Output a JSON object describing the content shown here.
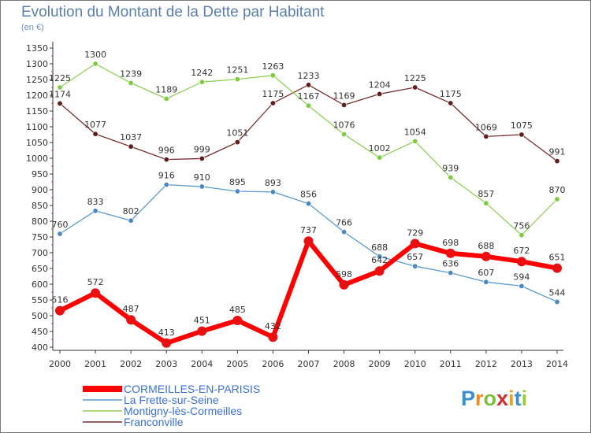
{
  "header": {
    "title": "Evolution du Montant de la Dette par Habitant",
    "subtitle": "(en €)"
  },
  "brand": {
    "letters": [
      "P",
      "r",
      "o",
      "x",
      "i",
      "t",
      "i"
    ],
    "colors": [
      "#3a8fd0",
      "#f08a1c",
      "#7fbf3f",
      "#d02f2f",
      "#f0a020",
      "#3a8fd0",
      "#9acd32"
    ]
  },
  "chart_data": {
    "type": "line",
    "categories": [
      "2000",
      "2001",
      "2002",
      "2003",
      "2004",
      "2005",
      "2006",
      "2007",
      "2008",
      "2009",
      "2010",
      "2011",
      "2012",
      "2013",
      "2014"
    ],
    "yticks": [
      400,
      450,
      500,
      550,
      600,
      650,
      700,
      750,
      800,
      850,
      900,
      950,
      1000,
      1050,
      1100,
      1150,
      1200,
      1250,
      1300,
      1350
    ],
    "ylim": [
      400,
      1350
    ],
    "grid": false,
    "legend": "bottom-left",
    "series": [
      {
        "name": "Franconville",
        "color": "#7a2e2e",
        "point_color": "#5e1e1e",
        "width": 1.3,
        "values": [
          1174,
          1077,
          1037,
          996,
          999,
          1051,
          1175,
          1233,
          1169,
          1204,
          1225,
          1175,
          1069,
          1075,
          991
        ]
      },
      {
        "name": "Montigny-lès-Cormeilles",
        "color": "#8fd05a",
        "point_color": "#7ecb3f",
        "width": 1.3,
        "values": [
          1225,
          1300,
          1239,
          1189,
          1242,
          1251,
          1263,
          1167,
          1076,
          1002,
          1054,
          939,
          857,
          756,
          870
        ]
      },
      {
        "name": "La Frette-sur-Seine",
        "color": "#5b9bd0",
        "point_color": "#4a88c4",
        "width": 1.3,
        "values": [
          760,
          833,
          802,
          916,
          910,
          895,
          893,
          856,
          766,
          688,
          657,
          636,
          607,
          594,
          544
        ]
      },
      {
        "name": "CORMEILLES-EN-PARISIS",
        "color": "#ff0000",
        "point_color": "#e81010",
        "width": 6,
        "values": [
          516,
          572,
          487,
          413,
          451,
          485,
          432,
          737,
          598,
          642,
          729,
          698,
          688,
          672,
          651
        ]
      }
    ],
    "legend_order": [
      "CORMEILLES-EN-PARISIS",
      "La Frette-sur-Seine",
      "Montigny-lès-Cormeilles",
      "Franconville"
    ],
    "legend_text_colors": {
      "CORMEILLES-EN-PARISIS": "#3a6fd8",
      "La Frette-sur-Seine": "#3a6fd8",
      "Montigny-lès-Cormeilles": "#3a6fd8",
      "Franconville": "#3a6fd8"
    }
  }
}
